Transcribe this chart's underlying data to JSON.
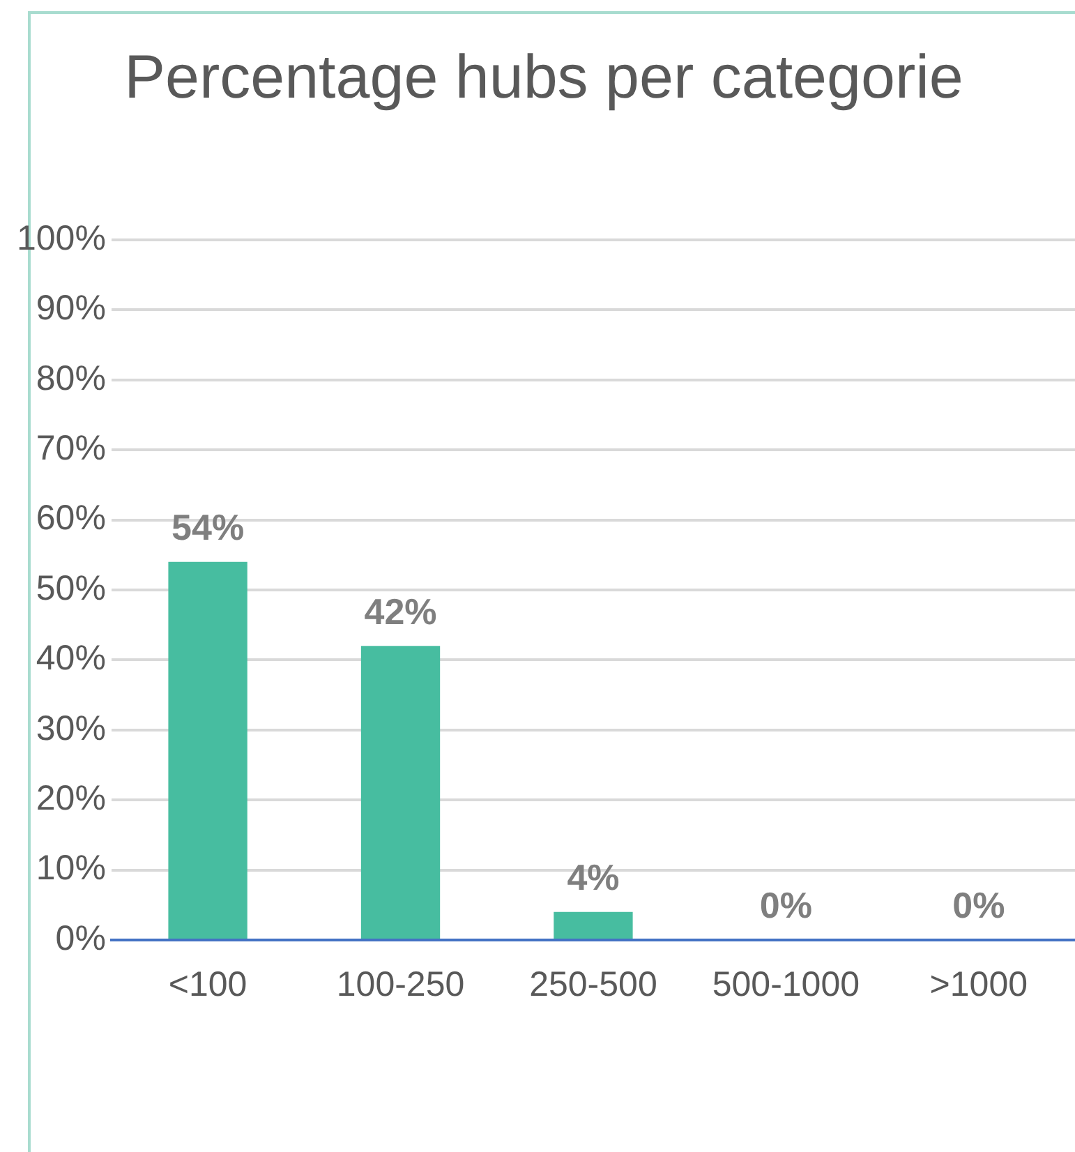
{
  "chart_data": {
    "type": "bar",
    "title": "Percentage hubs per categorie",
    "categories": [
      "<100",
      "100-250",
      "250-500",
      "500-1000",
      ">1000"
    ],
    "values": [
      54,
      42,
      4,
      0,
      0
    ],
    "color": "#47bda0",
    "value_labels": [
      "54%",
      "42%",
      "4%",
      "0%",
      "0%"
    ],
    "ylim": [
      0,
      100
    ],
    "yticks": [
      {
        "value": 0,
        "label": "0%"
      },
      {
        "value": 10,
        "label": "10%"
      },
      {
        "value": 20,
        "label": "20%"
      },
      {
        "value": 30,
        "label": "30%"
      },
      {
        "value": 40,
        "label": "40%"
      },
      {
        "value": 50,
        "label": "50%"
      },
      {
        "value": 60,
        "label": "60%"
      },
      {
        "value": 70,
        "label": "70%"
      },
      {
        "value": 80,
        "label": "80%"
      },
      {
        "value": 90,
        "label": "90%"
      },
      {
        "value": 100,
        "label": "100%"
      }
    ],
    "grid": "y"
  }
}
